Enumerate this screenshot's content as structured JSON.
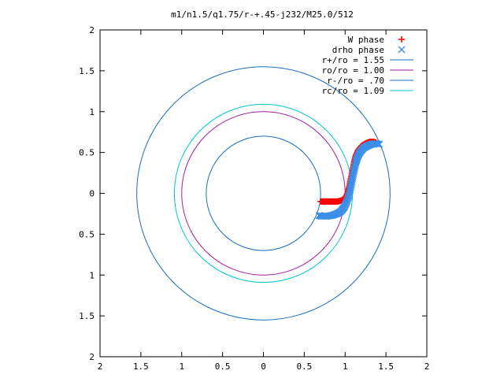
{
  "chart_data": {
    "type": "scatter",
    "title": "m1/n1.5/q1.75/r-+.45-j232/M25.0/512",
    "xlabel": "",
    "ylabel": "",
    "xlim": [
      -2,
      2
    ],
    "ylim": [
      -2,
      2
    ],
    "x_tick_values": [
      -2,
      -1.5,
      -1,
      -0.5,
      0,
      0.5,
      1,
      1.5,
      2
    ],
    "x_tick_labels": [
      "2",
      "1.5",
      "1",
      "0.5",
      "0",
      "0.5",
      "1",
      "1.5",
      "2"
    ],
    "y_tick_values": [
      2,
      1.5,
      1,
      0.5,
      0,
      -0.5,
      -1,
      -1.5,
      -2
    ],
    "y_tick_labels": [
      "2",
      "1.5",
      "1",
      "0.5",
      "0",
      "0.5",
      "1",
      "1.5",
      "2"
    ],
    "grid": false,
    "legend_position": "top-right",
    "series": [
      {
        "name": "W phase",
        "kind": "points",
        "marker": "plus",
        "color": "#ff0000",
        "x": [
          0.7,
          0.75,
          0.8,
          0.85,
          0.9,
          0.95,
          1.0,
          1.03,
          1.05,
          1.07,
          1.09,
          1.11,
          1.13,
          1.16,
          1.2,
          1.25,
          1.3,
          1.35,
          1.38
        ],
        "y": [
          -0.1,
          -0.1,
          -0.1,
          -0.1,
          -0.1,
          -0.09,
          -0.06,
          0.0,
          0.08,
          0.18,
          0.28,
          0.38,
          0.46,
          0.53,
          0.58,
          0.61,
          0.63,
          0.63,
          0.62
        ]
      },
      {
        "name": "drho phase",
        "kind": "points",
        "marker": "cross",
        "color": "#3a8fe8",
        "x": [
          0.68,
          0.72,
          0.78,
          0.84,
          0.9,
          0.95,
          0.99,
          1.02,
          1.05,
          1.07,
          1.09,
          1.11,
          1.13,
          1.15,
          1.18,
          1.22,
          1.27,
          1.32,
          1.37,
          1.42
        ],
        "y": [
          -0.27,
          -0.28,
          -0.28,
          -0.27,
          -0.25,
          -0.22,
          -0.17,
          -0.1,
          -0.02,
          0.08,
          0.18,
          0.28,
          0.37,
          0.44,
          0.5,
          0.55,
          0.58,
          0.6,
          0.61,
          0.6
        ]
      },
      {
        "name": "r+/ro = 1.55",
        "kind": "circle",
        "r": 1.55,
        "color": "#1a6fbf"
      },
      {
        "name": "ro/ro = 1.00",
        "kind": "circle",
        "r": 1.0,
        "color": "#a020a0"
      },
      {
        "name": "r-/ro = .70",
        "kind": "circle",
        "r": 0.7,
        "color": "#1a6fbf"
      },
      {
        "name": "rc/ro = 1.09",
        "kind": "circle",
        "r": 1.09,
        "color": "#00c8c8"
      }
    ]
  }
}
